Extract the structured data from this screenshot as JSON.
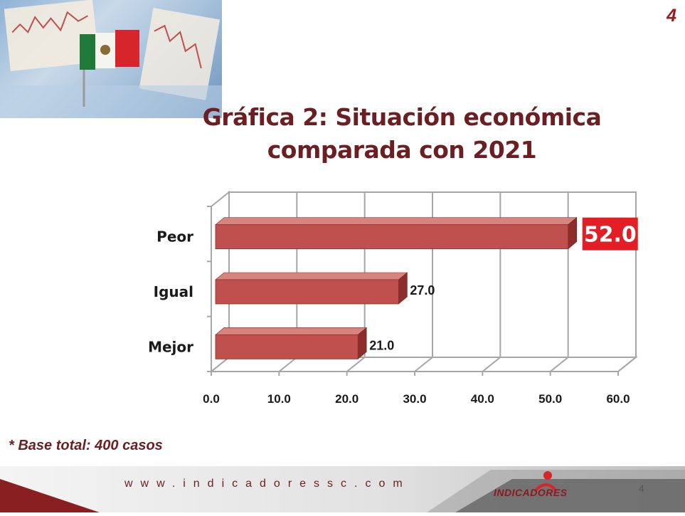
{
  "slide": {
    "number": "4"
  },
  "chart_data": {
    "type": "bar",
    "orientation": "horizontal",
    "title": "Gráfica 2: Situación económica comparada con 2021",
    "categories": [
      "Peor",
      "Igual",
      "Mejor"
    ],
    "values": [
      52.0,
      27.0,
      21.0
    ],
    "data_labels": [
      "52.0",
      "27.0",
      "21.0"
    ],
    "highlighted_label": "52.0",
    "xlabel": "",
    "ylabel": "",
    "xlim": [
      0,
      60
    ],
    "x_ticks": [
      "0.0",
      "10.0",
      "20.0",
      "30.0",
      "40.0",
      "50.0",
      "60.0"
    ],
    "grid": true,
    "legend": "none",
    "colors": {
      "bar": "#c0504d",
      "bar_top": "#d9837f",
      "bar_side": "#8c2f2c",
      "highlight_box": "#e31e24",
      "title": "#6b1f22"
    }
  },
  "footnote": "* Base total: 400 casos",
  "footer": {
    "website": "www.indicadoressc.com",
    "brand": "INDICADORES",
    "page_number": "4"
  }
}
